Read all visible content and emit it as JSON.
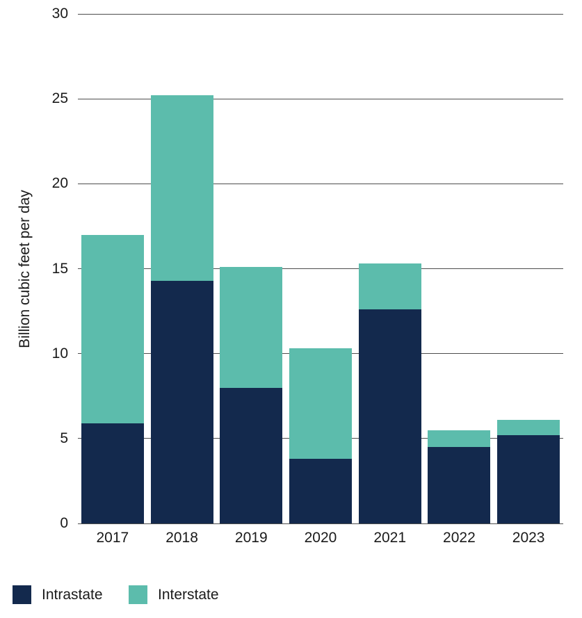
{
  "chart_data": {
    "type": "bar",
    "stacked": true,
    "title": "",
    "xlabel": "",
    "ylabel": "Billion cubic feet per day",
    "ylim": [
      0,
      30
    ],
    "yticks": [
      0,
      5,
      10,
      15,
      20,
      25,
      30
    ],
    "grid": true,
    "legend_position": "bottom-left",
    "categories": [
      "2017",
      "2018",
      "2019",
      "2020",
      "2021",
      "2022",
      "2023"
    ],
    "series": [
      {
        "name": "Intrastate",
        "color": "#13294d",
        "values": [
          5.9,
          14.3,
          8.0,
          3.8,
          12.6,
          4.5,
          5.2
        ]
      },
      {
        "name": "Interstate",
        "color": "#5cbcac",
        "values": [
          11.1,
          10.9,
          7.1,
          6.5,
          2.7,
          1.0,
          0.9
        ]
      }
    ],
    "totals": [
      17.0,
      25.2,
      15.1,
      10.3,
      15.3,
      5.5,
      6.1
    ]
  }
}
